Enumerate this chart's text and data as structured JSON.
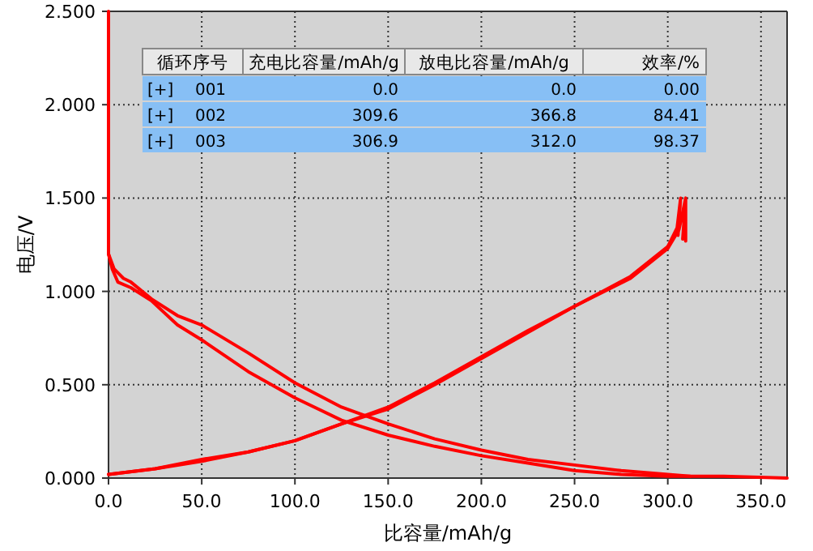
{
  "chart_data": {
    "type": "line",
    "xlabel": "比容量/mAh/g",
    "ylabel": "电压/V",
    "annotations": [
      "循环序号",
      "充电比容量/mAh/g",
      "放电比容量/mAh/g",
      "效率/%",
      "[+]",
      "001",
      "0.0",
      "0.0",
      "0.00",
      "[+]",
      "002",
      "309.6",
      "366.8",
      "84.41",
      "[+]",
      "003",
      "306.9",
      "312.0",
      "98.37"
    ],
    "xlim": [
      0,
      364
    ],
    "ylim": [
      0,
      2.5
    ],
    "xticks": [
      {
        "value": 0,
        "label": "0.0"
      },
      {
        "value": 50,
        "label": "50.0"
      },
      {
        "value": 100,
        "label": "100.0"
      },
      {
        "value": 150,
        "label": "150.0"
      },
      {
        "value": 200,
        "label": "200.0"
      },
      {
        "value": 250,
        "label": "250.0"
      },
      {
        "value": 300,
        "label": "300.0"
      },
      {
        "value": 350,
        "label": "350.0"
      }
    ],
    "yticks": [
      {
        "value": 0,
        "label": "0.000"
      },
      {
        "value": 0.5,
        "label": "0.500"
      },
      {
        "value": 1,
        "label": "1.000"
      },
      {
        "value": 1.5,
        "label": "1.500"
      },
      {
        "value": 2,
        "label": "2.000"
      },
      {
        "value": 2.5,
        "label": "2.500"
      }
    ],
    "grid": true,
    "marker": "none",
    "line_style": "solid",
    "series": [
      {
        "color": "#ff0000",
        "x": [
          0,
          0,
          2,
          5,
          12,
          23,
          37,
          50,
          75,
          100,
          125,
          150,
          175,
          200,
          225,
          250,
          275,
          300,
          330,
          364
        ],
        "values": [
          2.5,
          1.2,
          1.12,
          1.05,
          1.02,
          0.95,
          0.82,
          0.74,
          0.57,
          0.43,
          0.31,
          0.23,
          0.17,
          0.12,
          0.08,
          0.04,
          0.02,
          0.01,
          0.01,
          0.0
        ]
      },
      {
        "color": "#ff0000",
        "x": [
          0,
          3,
          8,
          12,
          23,
          37,
          50,
          75,
          100,
          125,
          150,
          175,
          200,
          225,
          250,
          275,
          300,
          312
        ],
        "values": [
          1.2,
          1.12,
          1.07,
          1.05,
          0.96,
          0.87,
          0.82,
          0.67,
          0.51,
          0.38,
          0.29,
          0.21,
          0.15,
          0.1,
          0.07,
          0.04,
          0.02,
          0.01
        ]
      },
      {
        "color": "#ff0000",
        "x": [
          0,
          25,
          50,
          75,
          100,
          125,
          150,
          175,
          200,
          225,
          250,
          280,
          300,
          305,
          306.9,
          305.5,
          306.9
        ],
        "values": [
          0.02,
          0.05,
          0.1,
          0.14,
          0.2,
          0.29,
          0.38,
          0.51,
          0.65,
          0.79,
          0.92,
          1.08,
          1.24,
          1.34,
          1.5,
          1.3,
          1.5
        ]
      },
      {
        "color": "#ff0000",
        "x": [
          0,
          25,
          50,
          75,
          100,
          125,
          150,
          175,
          200,
          225,
          250,
          280,
          300,
          306,
          309.6,
          308,
          309.6,
          309.6
        ],
        "values": [
          0.02,
          0.05,
          0.09,
          0.14,
          0.2,
          0.29,
          0.37,
          0.5,
          0.64,
          0.78,
          0.92,
          1.07,
          1.23,
          1.33,
          1.5,
          1.28,
          1.5,
          1.27
        ]
      }
    ]
  }
}
